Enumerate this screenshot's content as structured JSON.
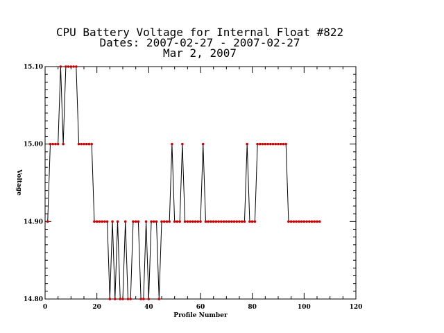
{
  "chart_data": {
    "type": "line",
    "title_lines": [
      "CPU Battery Voltage for Internal Float #822",
      "Dates:  2007-02-27 -  2007-02-27",
      "Mar  2, 2007"
    ],
    "xlabel": "Profile Number",
    "ylabel": "Voltage",
    "xlim": [
      0,
      120
    ],
    "ylim": [
      14.8,
      15.1
    ],
    "x_ticks": [
      0,
      20,
      40,
      60,
      80,
      100,
      120
    ],
    "y_ticks": [
      14.8,
      14.9,
      15.0,
      15.1
    ],
    "y_tick_labels": [
      "14.80",
      "14.90",
      "15.00",
      "15.10"
    ],
    "grid": false,
    "line_color": "#000000",
    "marker_color": "#cc0000",
    "series": [
      {
        "x": [
          1,
          2,
          3,
          4,
          5,
          6,
          7,
          8,
          9,
          10,
          11,
          12,
          13,
          14,
          15,
          16,
          17,
          18,
          19,
          20,
          21,
          22,
          23,
          24,
          25,
          26,
          27,
          28,
          29,
          30,
          31,
          32,
          33,
          34,
          35,
          36,
          37,
          38,
          39,
          40,
          41,
          42,
          43,
          44,
          45,
          46,
          47,
          48,
          49,
          50,
          51,
          52,
          53,
          54,
          55,
          56,
          57,
          58,
          59,
          60,
          61,
          62,
          63,
          64,
          65,
          66,
          67,
          68,
          69,
          70,
          71,
          72,
          73,
          74,
          75,
          76,
          77,
          78,
          79,
          80,
          81,
          82,
          83,
          84,
          85,
          86,
          87,
          88,
          89,
          90,
          91,
          92,
          93,
          94,
          95,
          96,
          97,
          98,
          99,
          100,
          101,
          102,
          103,
          104,
          105,
          106
        ],
        "y": [
          14.9,
          15.0,
          15.0,
          15.0,
          15.0,
          15.1,
          15.0,
          15.1,
          15.1,
          15.1,
          15.1,
          15.1,
          15.0,
          15.0,
          15.0,
          15.0,
          15.0,
          15.0,
          14.9,
          14.9,
          14.9,
          14.9,
          14.9,
          14.9,
          14.8,
          14.9,
          14.8,
          14.9,
          14.8,
          14.8,
          14.9,
          14.8,
          14.8,
          14.9,
          14.9,
          14.9,
          14.8,
          14.8,
          14.9,
          14.8,
          14.9,
          14.9,
          14.9,
          14.8,
          14.9,
          14.9,
          14.9,
          14.9,
          15.0,
          14.9,
          14.9,
          14.9,
          15.0,
          14.9,
          14.9,
          14.9,
          14.9,
          14.9,
          14.9,
          14.9,
          15.0,
          14.9,
          14.9,
          14.9,
          14.9,
          14.9,
          14.9,
          14.9,
          14.9,
          14.9,
          14.9,
          14.9,
          14.9,
          14.9,
          14.9,
          14.9,
          14.9,
          15.0,
          14.9,
          14.9,
          14.9,
          15.0,
          15.0,
          15.0,
          15.0,
          15.0,
          15.0,
          15.0,
          15.0,
          15.0,
          15.0,
          15.0,
          15.0,
          14.9,
          14.9,
          14.9,
          14.9,
          14.9,
          14.9,
          14.9,
          14.9,
          14.9,
          14.9,
          14.9,
          14.9,
          14.9
        ]
      }
    ]
  }
}
